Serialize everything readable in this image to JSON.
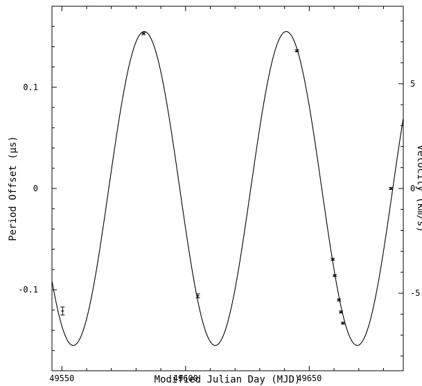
{
  "chart_data": {
    "type": "line",
    "title": "",
    "xlabel": "Modified Julian Day (MJD)",
    "ylabel": "Period Offset (μs)",
    "y2label": "Velocity (km/s)",
    "xlim": [
      49546,
      49688
    ],
    "ylim": [
      -0.18,
      0.18
    ],
    "y2lim": [
      -8.7,
      8.7
    ],
    "xticks": [
      49550,
      49600,
      49650
    ],
    "xtick_labels": [
      "49550",
      "49600",
      "49650"
    ],
    "yticks": [
      -0.1,
      0,
      0.1
    ],
    "ytick_labels": [
      "-0.1",
      "0",
      "0.1"
    ],
    "y2ticks": [
      -5,
      0,
      5
    ],
    "y2tick_labels": [
      "-5",
      "0",
      "5"
    ],
    "grid": false,
    "model_curve": {
      "amplitude": 0.155,
      "period_days": 57.4,
      "first_maximum_mjd": 49583.3
    },
    "series": [
      {
        "type": "scatter_errorbar",
        "x": [
          49550.3,
          49583.0,
          49605.0,
          49645.0,
          49659.5,
          49660.3,
          49662.0,
          49662.8,
          49663.6,
          49683.0
        ],
        "y": [
          -0.121,
          0.153,
          -0.106,
          0.136,
          -0.07,
          -0.086,
          -0.11,
          -0.122,
          -0.133,
          0.0
        ],
        "yerr": [
          0.004,
          0.001,
          0.002,
          0.001,
          0.001,
          0.001,
          0.001,
          0.001,
          0.001,
          0.001
        ]
      }
    ]
  }
}
